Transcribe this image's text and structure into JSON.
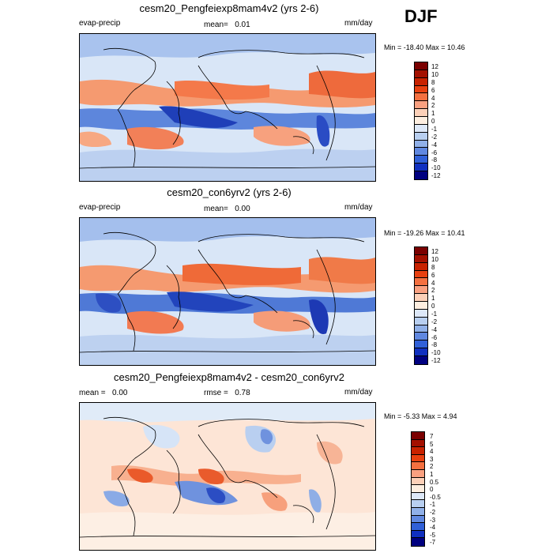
{
  "season": "DJF",
  "panels": [
    {
      "title": "cesm20_Pengfeiexp8mam4v2 (yrs 2-6)",
      "variable": "evap-precip",
      "mean_label": "mean=",
      "mean_value": "0.01",
      "extra_label": "",
      "extra_value": "",
      "units": "mm/day",
      "minmax": "Min = -18.40 Max =  10.46",
      "colorbar_ticks": [
        "12",
        "10",
        "8",
        "6",
        "4",
        "2",
        "1",
        "0",
        "-1",
        "-2",
        "-4",
        "-6",
        "-8",
        "-10",
        "-12"
      ]
    },
    {
      "title": "cesm20_con6yrv2 (yrs 2-6)",
      "variable": "evap-precip",
      "mean_label": "mean=",
      "mean_value": "0.00",
      "extra_label": "",
      "extra_value": "",
      "units": "mm/day",
      "minmax": "Min = -19.26 Max =  10.41",
      "colorbar_ticks": [
        "12",
        "10",
        "8",
        "6",
        "4",
        "2",
        "1",
        "0",
        "-1",
        "-2",
        "-4",
        "-6",
        "-8",
        "-10",
        "-12"
      ]
    },
    {
      "title": "cesm20_Pengfeiexp8mam4v2 - cesm20_con6yrv2",
      "variable": "",
      "mean_label": "mean =",
      "mean_value": "0.00",
      "extra_label": "rmse =",
      "extra_value": "0.78",
      "units": "mm/day",
      "minmax": "Min =  -5.33 Max =   4.94",
      "colorbar_ticks": [
        "7",
        "5",
        "4",
        "3",
        "2",
        "1",
        "0.5",
        "0",
        "-0.5",
        "-1",
        "-2",
        "-3",
        "-4",
        "-5",
        "-7"
      ]
    }
  ],
  "colors": {
    "colorbar": [
      "#7a0000",
      "#a31000",
      "#c82200",
      "#e84010",
      "#f47040",
      "#f9a080",
      "#fcd0b8",
      "#fdeee0",
      "#dde8f8",
      "#b8cff0",
      "#90b0e8",
      "#6088e0",
      "#3060d8",
      "#1030c0",
      "#000080"
    ]
  }
}
